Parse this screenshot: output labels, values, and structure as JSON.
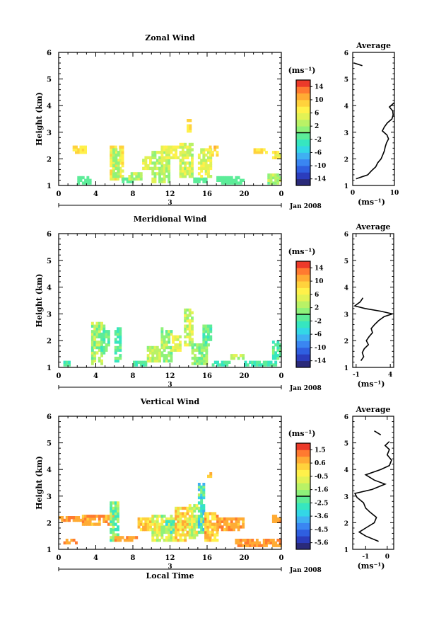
{
  "chart_data": [
    {
      "type": "heatmap",
      "title": "Zonal Wind",
      "ylabel": "Height (km)",
      "xlabel": "",
      "xlim": [
        0,
        24
      ],
      "ylim": [
        1,
        6
      ],
      "xticks": [
        "0",
        "4",
        "8",
        "12",
        "16",
        "20",
        "0"
      ],
      "yticks": [
        "1",
        "2",
        "3",
        "4",
        "5",
        "6"
      ],
      "date_label": "3",
      "month_label": "Jan 2008",
      "colorbar": {
        "unit": "(ms⁻¹)",
        "min": -16,
        "max": 16,
        "ticks": [
          "14",
          "10",
          "6",
          "2",
          "-2",
          "-6",
          "-10",
          "-14"
        ]
      },
      "average": {
        "title": "Average",
        "xlabel": "(ms⁻¹)",
        "xlim": [
          0,
          10
        ],
        "xticks": [
          "0",
          "10"
        ],
        "height": [
          1.25,
          1.4,
          1.55,
          1.7,
          1.85,
          2.0,
          2.15,
          2.3,
          2.45,
          2.6,
          2.75,
          2.9,
          3.05,
          3.2,
          3.35,
          3.5,
          3.65,
          3.8,
          3.95,
          4.1
        ],
        "value": [
          0.8,
          3.6,
          4.5,
          5.5,
          6.0,
          6.8,
          7.2,
          7.6,
          7.8,
          8.1,
          8.6,
          8.2,
          7.1,
          7.6,
          8.3,
          9.4,
          9.7,
          9.6,
          8.8,
          9.9
        ],
        "segment2": {
          "height": [
            5.6,
            5.5
          ],
          "value": [
            0.3,
            2.3
          ]
        }
      }
    },
    {
      "type": "heatmap",
      "title": "Meridional Wind",
      "ylabel": "Height (km)",
      "xlabel": "",
      "xlim": [
        0,
        24
      ],
      "ylim": [
        1,
        6
      ],
      "xticks": [
        "0",
        "4",
        "8",
        "12",
        "16",
        "20",
        "0"
      ],
      "yticks": [
        "1",
        "2",
        "3",
        "4",
        "5",
        "6"
      ],
      "date_label": "3",
      "month_label": "Jan 2008",
      "colorbar": {
        "unit": "(ms⁻¹)",
        "min": -16,
        "max": 16,
        "ticks": [
          "14",
          "10",
          "6",
          "2",
          "-2",
          "-6",
          "-10",
          "-14"
        ]
      },
      "average": {
        "title": "Average",
        "xlabel": "(ms⁻¹)",
        "xlim": [
          -1.5,
          4.5
        ],
        "xticks": [
          "-1",
          "4"
        ],
        "height": [
          1.25,
          1.4,
          1.55,
          1.7,
          1.85,
          2.0,
          2.15,
          2.3,
          2.45,
          2.6,
          2.75,
          2.9,
          3.0,
          3.1,
          3.2,
          3.3,
          3.45,
          3.6
        ],
        "value": [
          -0.3,
          0.1,
          -0.1,
          0.2,
          0.8,
          0.5,
          0.9,
          1.4,
          1.2,
          1.7,
          2.3,
          3.1,
          4.3,
          2.6,
          0.3,
          -1.2,
          -0.4,
          0.0
        ]
      }
    },
    {
      "type": "heatmap",
      "title": "Vertical Wind",
      "ylabel": "Height (km)",
      "xlabel": "Local Time",
      "xlim": [
        0,
        24
      ],
      "ylim": [
        1,
        6
      ],
      "xticks": [
        "0",
        "4",
        "8",
        "12",
        "16",
        "20",
        "0"
      ],
      "yticks": [
        "1",
        "2",
        "3",
        "4",
        "5",
        "6"
      ],
      "date_label": "3",
      "month_label": "Jan 2008",
      "colorbar": {
        "unit": "(ms⁻¹)",
        "min": -6,
        "max": 2,
        "ticks": [
          "1.5",
          "0.6",
          "-0.5",
          "-1.6",
          "-2.5",
          "-3.6",
          "-4.5",
          "-5.6"
        ]
      },
      "average": {
        "title": "Average",
        "xlabel": "(ms⁻¹)",
        "xlim": [
          -1.6,
          0.3
        ],
        "xticks": [
          "-1",
          "0"
        ],
        "height": [
          1.3,
          1.5,
          1.65,
          1.85,
          2.0,
          2.2,
          2.4,
          2.55,
          2.75,
          2.95,
          3.1,
          3.25,
          3.45,
          3.6,
          3.8,
          4.0,
          4.15,
          4.35,
          4.55,
          4.75,
          4.9,
          5.05
        ],
        "value": [
          -0.4,
          -1.0,
          -1.3,
          -0.9,
          -0.6,
          -0.5,
          -0.8,
          -1.0,
          -1.1,
          -1.4,
          -1.5,
          -0.7,
          -0.1,
          -0.6,
          -1.0,
          -0.3,
          0.1,
          0.2,
          0.0,
          0.1,
          -0.1,
          0.1
        ],
        "segment2": {
          "height": [
            5.45,
            5.3
          ],
          "value": [
            -0.6,
            -0.3
          ]
        }
      }
    }
  ]
}
